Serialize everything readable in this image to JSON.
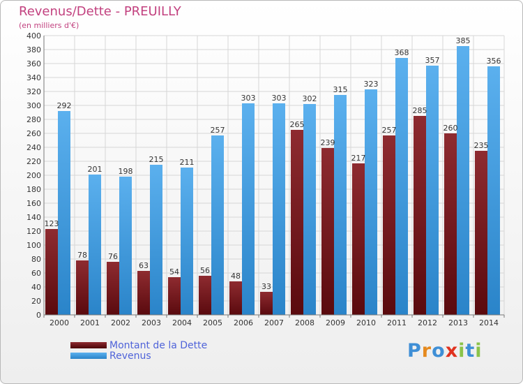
{
  "title": "Revenus/Dette - PREUILLY",
  "subtitle": "(en milliers d'€)",
  "chart_data": {
    "type": "bar",
    "categories": [
      "2000",
      "2001",
      "2002",
      "2003",
      "2004",
      "2005",
      "2006",
      "2007",
      "2008",
      "2009",
      "2010",
      "2011",
      "2012",
      "2013",
      "2014"
    ],
    "series": [
      {
        "name": "Montant de la Dette",
        "values": [
          123,
          78,
          76,
          63,
          54,
          56,
          48,
          33,
          265,
          239,
          217,
          257,
          285,
          260,
          235
        ],
        "color": "#7a1a1f"
      },
      {
        "name": "Revenus",
        "values": [
          292,
          201,
          198,
          215,
          211,
          257,
          303,
          303,
          302,
          315,
          323,
          368,
          357,
          385,
          356
        ],
        "color": "#3d97dc"
      }
    ],
    "ylim": [
      0,
      400
    ],
    "ytick_step": 20,
    "grid": true,
    "legend": "bottom-left"
  },
  "logo": {
    "text": "Proxiti",
    "letters": [
      {
        "ch": "P",
        "color": "#3f8fd6"
      },
      {
        "ch": "r",
        "color": "#e58a1f"
      },
      {
        "ch": "o",
        "color": "#3f8fd6"
      },
      {
        "ch": "x",
        "color": "#e0321f"
      },
      {
        "ch": "i",
        "color": "#8bc34a"
      },
      {
        "ch": "t",
        "color": "#3f8fd6"
      },
      {
        "ch": "i",
        "color": "#8bc34a"
      }
    ]
  }
}
